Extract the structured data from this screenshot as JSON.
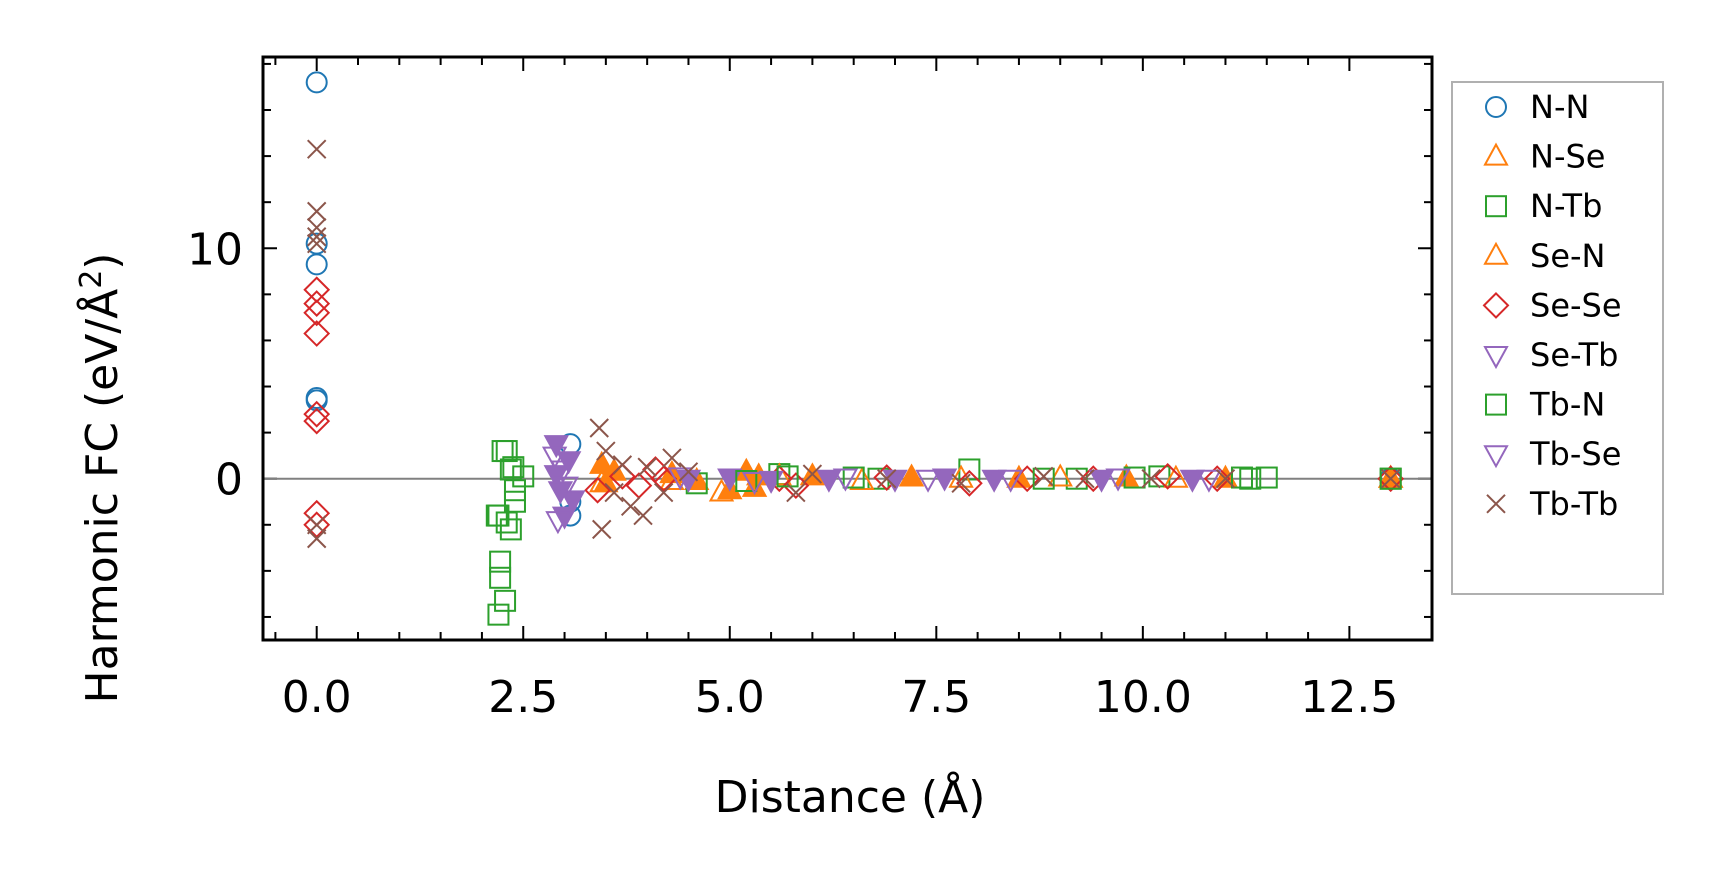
{
  "chart_data": {
    "type": "scatter",
    "title": "",
    "xlabel": "Distance (Å)",
    "ylabel_main": "Harmonic FC (eV/Å",
    "ylabel_sup": "2",
    "ylabel_close": ")",
    "xlim": [
      -0.65,
      13.5
    ],
    "ylim": [
      -7.0,
      18.3
    ],
    "xticks": [
      0.0,
      2.5,
      5.0,
      7.5,
      10.0,
      12.5
    ],
    "xtick_labels": [
      "0.0",
      "2.5",
      "5.0",
      "7.5",
      "10.0",
      "12.5"
    ],
    "yticks": [
      0,
      10
    ],
    "ytick_labels": [
      "0",
      "10"
    ],
    "zero_line": 0,
    "legend_position": "outside-right",
    "series": [
      {
        "name": "N-N",
        "marker": "circle",
        "color": "#1f77b4",
        "points": [
          [
            0,
            17.2
          ],
          [
            0,
            10.2
          ],
          [
            0,
            9.3
          ],
          [
            0,
            3.5
          ],
          [
            0,
            3.4
          ],
          [
            3.07,
            1.5
          ],
          [
            3.07,
            -1.6
          ],
          [
            3.07,
            -1.0
          ],
          [
            13.0,
            0
          ]
        ]
      },
      {
        "name": "N-Se",
        "marker": "triangle-up",
        "color": "#ff7f0e",
        "points": [
          [
            3.45,
            0.6
          ],
          [
            3.5,
            -0.2
          ],
          [
            3.6,
            0.3
          ],
          [
            4.3,
            0.2
          ],
          [
            4.6,
            -0.1
          ],
          [
            5.0,
            -0.5
          ],
          [
            5.2,
            0.3
          ],
          [
            5.3,
            -0.4
          ],
          [
            5.35,
            0.1
          ],
          [
            6.0,
            0.1
          ],
          [
            7.2,
            0.05
          ],
          [
            8.5,
            0
          ],
          [
            9.8,
            0.05
          ],
          [
            11.0,
            0
          ],
          [
            13.0,
            0
          ]
        ]
      },
      {
        "name": "N-Tb",
        "marker": "square",
        "color": "#2ca02c",
        "points": [
          [
            2.2,
            -1.6
          ],
          [
            2.25,
            1.2
          ],
          [
            2.3,
            -1.9
          ],
          [
            2.35,
            0.4
          ],
          [
            2.4,
            -1.0
          ],
          [
            2.5,
            0.1
          ],
          [
            4.6,
            -0.2
          ],
          [
            5.6,
            0.2
          ],
          [
            6.8,
            0
          ],
          [
            7.9,
            0.4
          ],
          [
            9.2,
            0
          ],
          [
            10.2,
            0.1
          ],
          [
            11.2,
            0.05
          ],
          [
            11.5,
            0.05
          ],
          [
            13.0,
            0
          ]
        ]
      },
      {
        "name": "Se-N",
        "marker": "triangle-up-open",
        "color": "#ff7f0e",
        "points": [
          [
            3.45,
            -0.2
          ],
          [
            4.3,
            -0.1
          ],
          [
            4.9,
            -0.6
          ],
          [
            5.6,
            0.1
          ],
          [
            6.6,
            -0.1
          ],
          [
            7.8,
            0
          ],
          [
            9.0,
            0.05
          ],
          [
            10.4,
            0
          ],
          [
            13.0,
            0
          ]
        ]
      },
      {
        "name": "Se-Se",
        "marker": "diamond",
        "color": "#d62728",
        "points": [
          [
            0,
            8.2
          ],
          [
            0,
            7.6
          ],
          [
            0,
            7.2
          ],
          [
            0,
            6.3
          ],
          [
            0,
            2.8
          ],
          [
            0,
            2.5
          ],
          [
            0,
            -1.5
          ],
          [
            0,
            -2.0
          ],
          [
            3.4,
            -0.5
          ],
          [
            3.7,
            0.1
          ],
          [
            3.9,
            -0.3
          ],
          [
            4.1,
            0.4
          ],
          [
            4.2,
            0
          ],
          [
            5.6,
            0
          ],
          [
            5.8,
            -0.3
          ],
          [
            6.9,
            0.05
          ],
          [
            7.9,
            -0.2
          ],
          [
            8.6,
            0
          ],
          [
            9.4,
            0
          ],
          [
            10.3,
            0.1
          ],
          [
            10.9,
            0
          ],
          [
            13.0,
            0
          ]
        ]
      },
      {
        "name": "Se-Tb",
        "marker": "triangle-down",
        "color": "#9467bd",
        "points": [
          [
            2.9,
            1.5
          ],
          [
            2.9,
            0.2
          ],
          [
            2.95,
            -0.5
          ],
          [
            3.0,
            -1.6
          ],
          [
            3.05,
            0.8
          ],
          [
            3.1,
            -0.9
          ],
          [
            4.5,
            0
          ],
          [
            5.0,
            0.05
          ],
          [
            5.5,
            -0.05
          ],
          [
            6.2,
            0
          ],
          [
            7.0,
            0
          ],
          [
            7.6,
            0.05
          ],
          [
            8.2,
            0
          ],
          [
            9.5,
            0
          ],
          [
            10.6,
            0
          ]
        ]
      },
      {
        "name": "Tb-N",
        "marker": "square-open",
        "color": "#2ca02c",
        "points": [
          [
            2.18,
            -1.6
          ],
          [
            2.22,
            -3.6
          ],
          [
            2.22,
            -4.3
          ],
          [
            2.28,
            -5.3
          ],
          [
            2.2,
            -5.9
          ],
          [
            2.3,
            1.2
          ],
          [
            2.35,
            -2.2
          ],
          [
            2.4,
            -0.5
          ],
          [
            2.38,
            0.5
          ],
          [
            5.2,
            -0.1
          ],
          [
            5.7,
            0.1
          ],
          [
            6.5,
            0.05
          ],
          [
            8.8,
            0
          ],
          [
            9.9,
            0.05
          ],
          [
            11.3,
            0
          ],
          [
            13.0,
            0
          ]
        ]
      },
      {
        "name": "Tb-Se",
        "marker": "triangle-down-open",
        "color": "#9467bd",
        "points": [
          [
            2.88,
            1.0
          ],
          [
            2.92,
            -1.8
          ],
          [
            2.98,
            0.4
          ],
          [
            3.02,
            -0.3
          ],
          [
            4.4,
            0.1
          ],
          [
            5.3,
            -0.1
          ],
          [
            6.4,
            0.05
          ],
          [
            7.4,
            0
          ],
          [
            8.4,
            0
          ],
          [
            9.7,
            0.05
          ],
          [
            10.8,
            0
          ]
        ]
      },
      {
        "name": "Tb-Tb",
        "marker": "x",
        "color": "#8c564b",
        "points": [
          [
            0,
            14.3
          ],
          [
            0,
            11.6
          ],
          [
            0,
            10.9
          ],
          [
            0,
            10.5
          ],
          [
            0,
            10.2
          ],
          [
            0,
            -2.0
          ],
          [
            0,
            -2.6
          ],
          [
            3.42,
            2.2
          ],
          [
            3.45,
            -2.2
          ],
          [
            3.5,
            1.2
          ],
          [
            3.6,
            -0.6
          ],
          [
            3.7,
            0.6
          ],
          [
            3.8,
            -1.2
          ],
          [
            3.95,
            -1.6
          ],
          [
            4.0,
            0.5
          ],
          [
            4.2,
            -0.6
          ],
          [
            4.3,
            0.9
          ],
          [
            4.5,
            0.3
          ],
          [
            5.8,
            -0.6
          ],
          [
            6.0,
            0.2
          ],
          [
            6.9,
            0
          ],
          [
            7.8,
            -0.2
          ],
          [
            8.8,
            0.1
          ],
          [
            9.3,
            0
          ],
          [
            10.1,
            0
          ],
          [
            11.0,
            0
          ],
          [
            13.0,
            0
          ]
        ]
      }
    ]
  }
}
